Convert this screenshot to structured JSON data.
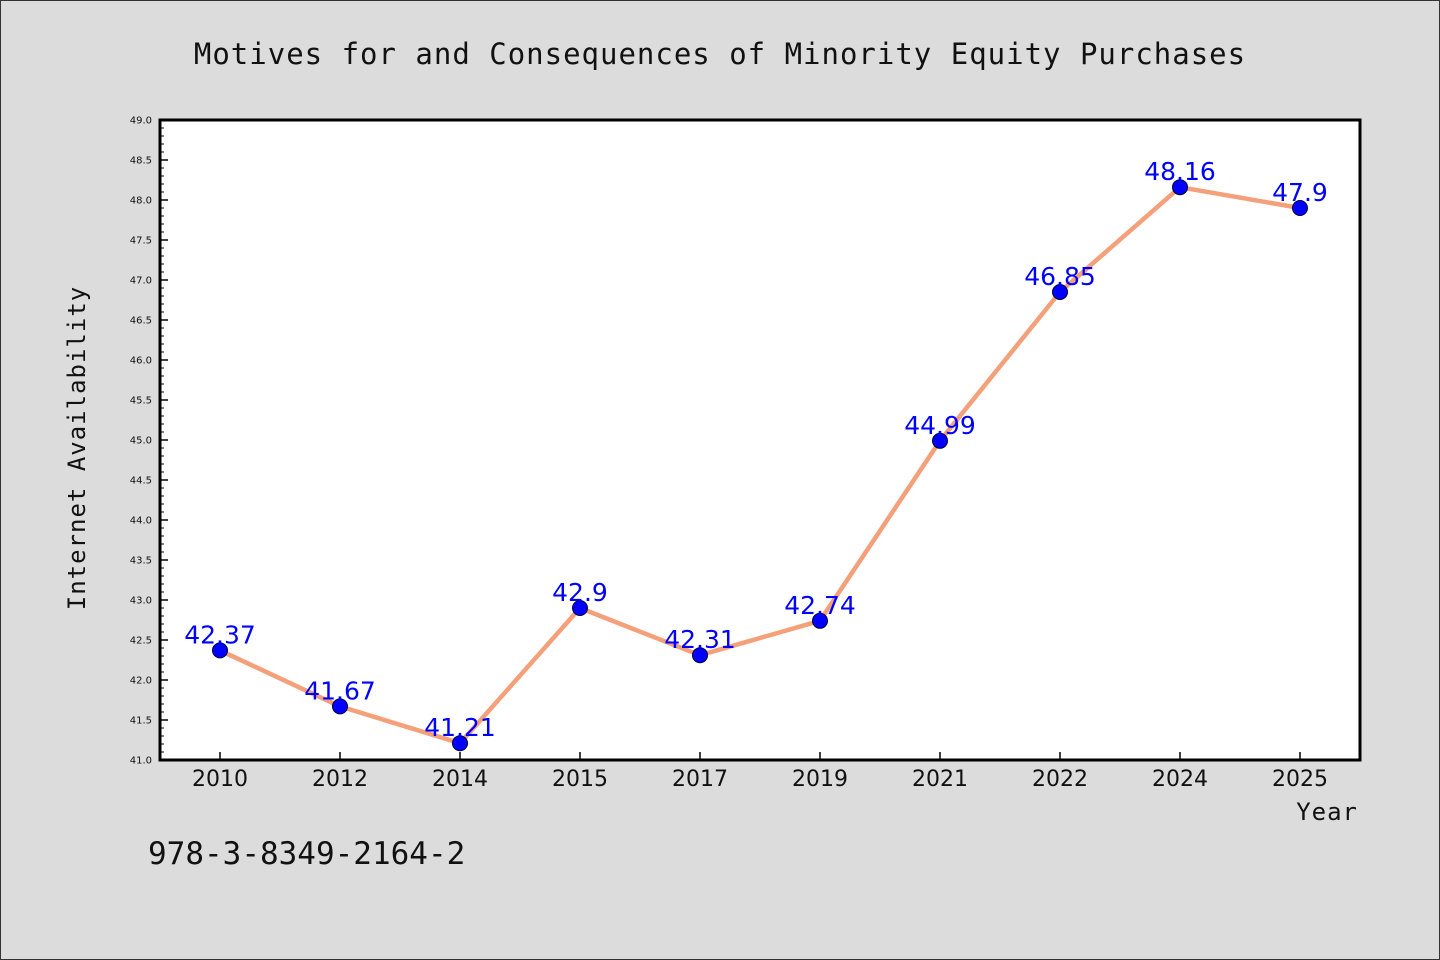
{
  "figure": {
    "footer": "978-3-8349-2164-2",
    "colors": {
      "background": "#dcdcdc",
      "plot_area": "#ffffff",
      "line": "#f4a07a",
      "marker": "#0000ff",
      "data_label": "#0000ff"
    }
  },
  "chart_data": {
    "type": "line",
    "title": "Motives for and Consequences of Minority Equity Purchases",
    "xlabel": "Year",
    "ylabel": "Internet Availability",
    "categories": [
      "2010",
      "2012",
      "2014",
      "2015",
      "2017",
      "2019",
      "2021",
      "2022",
      "2024",
      "2025"
    ],
    "series": [
      {
        "values": [
          42.37,
          41.67,
          41.21,
          42.9,
          42.31,
          42.74,
          44.99,
          46.85,
          48.16,
          47.9
        ],
        "data_labels": [
          "42.37",
          "41.67",
          "41.21",
          "42.9",
          "42.31",
          "42.74",
          "44.99",
          "46.85",
          "48.16",
          "47.9"
        ]
      }
    ],
    "ylim": [
      41.0,
      49.0
    ],
    "yticks": [
      "41.0",
      "41.5",
      "42.0",
      "42.5",
      "43.0",
      "43.5",
      "44.0",
      "44.5",
      "45.0",
      "45.5",
      "46.0",
      "46.5",
      "47.0",
      "47.5",
      "48.0",
      "48.5",
      "49.0"
    ],
    "grid": false,
    "legend": "none"
  }
}
